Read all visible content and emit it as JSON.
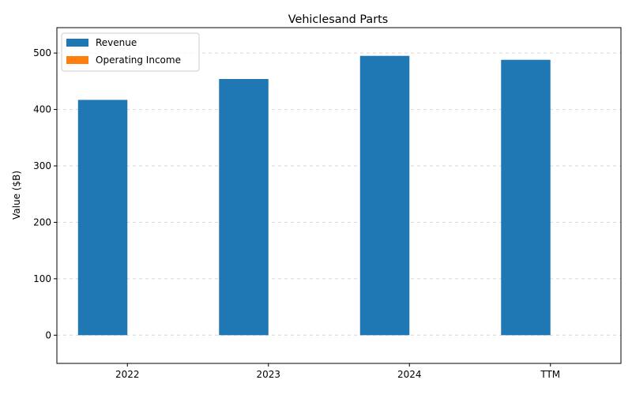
{
  "chart_data": {
    "type": "bar",
    "title": "Vehiclesand Parts",
    "xlabel": "",
    "ylabel": "Value ($B)",
    "categories": [
      "2022",
      "2023",
      "2024",
      "TTM"
    ],
    "series": [
      {
        "name": "Revenue",
        "values": [
          417,
          454,
          495,
          488
        ],
        "color": "#1f77b4"
      },
      {
        "name": "Operating Income",
        "values": [
          0,
          0,
          0,
          0
        ],
        "color": "#ff7f0e"
      }
    ],
    "ylim": [
      -50,
      545
    ],
    "yticks": [
      0,
      100,
      200,
      300,
      400,
      500
    ],
    "grid": "y-dashed",
    "legend_position": "top-left"
  }
}
